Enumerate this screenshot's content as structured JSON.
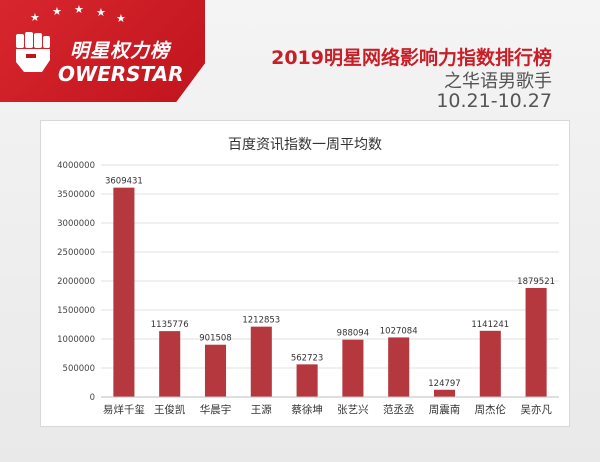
{
  "logo": {
    "cn_text": "明星权力榜",
    "en_text": "OWERSTAR",
    "colors": {
      "badge": "#d3202a",
      "text": "#ffffff"
    },
    "icons": [
      "fist-icon",
      "star-icon"
    ]
  },
  "header": {
    "title": "2019明星网络影响力指数排行榜",
    "subtitle": "之华语男歌手",
    "date_range": "10.21-10.27",
    "title_color": "#c81e27"
  },
  "chart_data": {
    "type": "bar",
    "title": "百度资讯指数一周平均数",
    "categories": [
      "易烊千玺",
      "王俊凯",
      "华晨宇",
      "王源",
      "蔡徐坤",
      "张艺兴",
      "范丞丞",
      "周震南",
      "周杰伦",
      "吴亦凡"
    ],
    "values": [
      3609431,
      1135776,
      901508,
      1212853,
      562723,
      988094,
      1027084,
      124797,
      1141241,
      1879521
    ],
    "data_labels": [
      "3609431",
      "1135776",
      "901508",
      "1212853",
      "562723",
      "988094",
      "1027084",
      "124797",
      "1141241",
      "1879521"
    ],
    "y_ticks": [
      "0",
      "500000",
      "1000000",
      "1500000",
      "2000000",
      "2500000",
      "3000000",
      "3500000",
      "4000000"
    ],
    "ylim": [
      0,
      4000000
    ],
    "grid": true,
    "bar_color": "#b5383e",
    "xlabel": "",
    "ylabel": ""
  }
}
